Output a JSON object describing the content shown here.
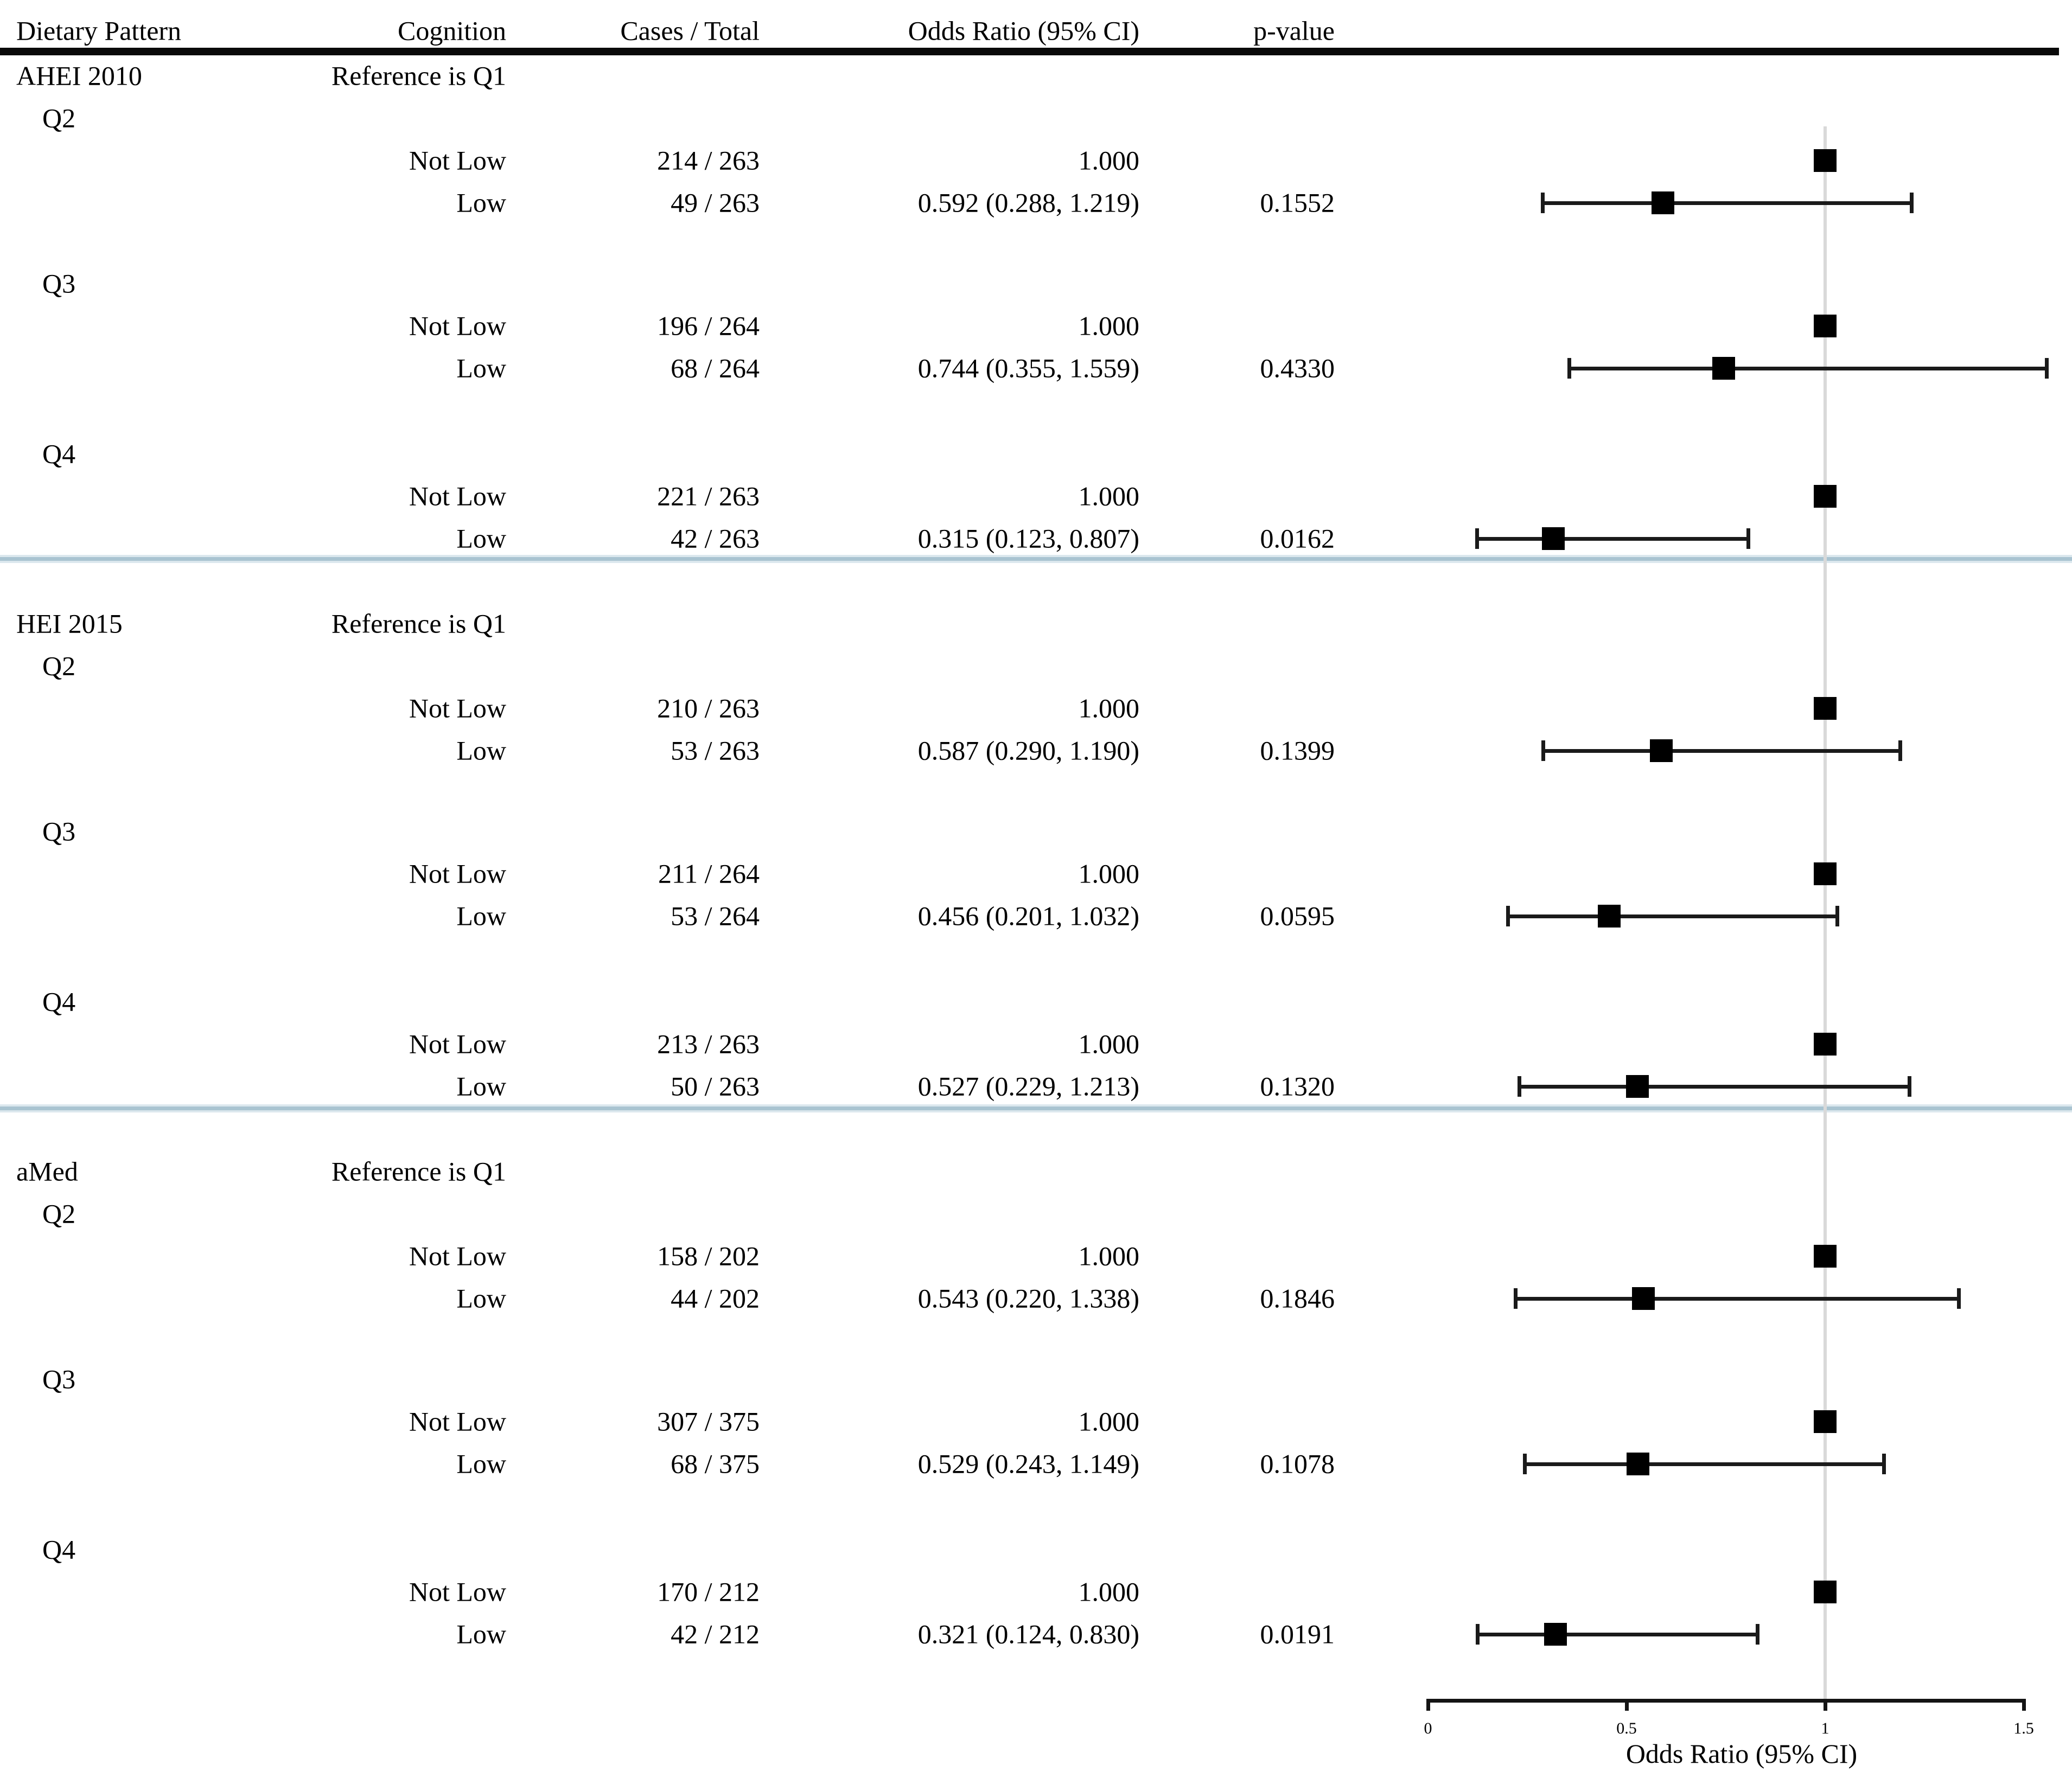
{
  "table": {
    "headers": {
      "dietary_pattern": "Dietary Pattern",
      "cognition": "Cognition",
      "cases_total": "Cases / Total",
      "odds_ratio": "Odds Ratio (95% CI)",
      "p_value": "p-value"
    }
  },
  "chart_data": {
    "type": "forest",
    "axis": {
      "label": "Odds Ratio (95% CI)",
      "ticks": [
        0,
        0.5,
        1,
        1.5
      ],
      "range": [
        0,
        1.5
      ],
      "reference_line": 1
    },
    "colors": {
      "marker": "#000000",
      "divider_blue": "#a9c4d1",
      "reference_line_gray": "#d9d9d9"
    },
    "sections": [
      {
        "pattern": "AHEI 2010",
        "reference_note": "Reference is Q1",
        "quartiles": [
          {
            "label": "Q2",
            "rows": [
              {
                "cognition": "Not Low",
                "cases": "214 / 263",
                "or_text": "1.000",
                "or": 1.0,
                "ci_low": null,
                "ci_high": null,
                "p_value": ""
              },
              {
                "cognition": "Low",
                "cases": "49 / 263",
                "or_text": "0.592 (0.288, 1.219)",
                "or": 0.592,
                "ci_low": 0.288,
                "ci_high": 1.219,
                "p_value": "0.1552"
              }
            ]
          },
          {
            "label": "Q3",
            "rows": [
              {
                "cognition": "Not Low",
                "cases": "196 / 264",
                "or_text": "1.000",
                "or": 1.0,
                "ci_low": null,
                "ci_high": null,
                "p_value": ""
              },
              {
                "cognition": "Low",
                "cases": "68 / 264",
                "or_text": "0.744 (0.355, 1.559)",
                "or": 0.744,
                "ci_low": 0.355,
                "ci_high": 1.559,
                "p_value": "0.4330"
              }
            ]
          },
          {
            "label": "Q4",
            "rows": [
              {
                "cognition": "Not Low",
                "cases": "221 / 263",
                "or_text": "1.000",
                "or": 1.0,
                "ci_low": null,
                "ci_high": null,
                "p_value": ""
              },
              {
                "cognition": "Low",
                "cases": "42 / 263",
                "or_text": "0.315 (0.123, 0.807)",
                "or": 0.315,
                "ci_low": 0.123,
                "ci_high": 0.807,
                "p_value": "0.0162"
              }
            ]
          }
        ]
      },
      {
        "pattern": "HEI 2015",
        "reference_note": "Reference is Q1",
        "quartiles": [
          {
            "label": "Q2",
            "rows": [
              {
                "cognition": "Not Low",
                "cases": "210 / 263",
                "or_text": "1.000",
                "or": 1.0,
                "ci_low": null,
                "ci_high": null,
                "p_value": ""
              },
              {
                "cognition": "Low",
                "cases": "53 / 263",
                "or_text": "0.587 (0.290, 1.190)",
                "or": 0.587,
                "ci_low": 0.29,
                "ci_high": 1.19,
                "p_value": "0.1399"
              }
            ]
          },
          {
            "label": "Q3",
            "rows": [
              {
                "cognition": "Not Low",
                "cases": "211 / 264",
                "or_text": "1.000",
                "or": 1.0,
                "ci_low": null,
                "ci_high": null,
                "p_value": ""
              },
              {
                "cognition": "Low",
                "cases": "53 / 264",
                "or_text": "0.456 (0.201, 1.032)",
                "or": 0.456,
                "ci_low": 0.201,
                "ci_high": 1.032,
                "p_value": "0.0595"
              }
            ]
          },
          {
            "label": "Q4",
            "rows": [
              {
                "cognition": "Not Low",
                "cases": "213 / 263",
                "or_text": "1.000",
                "or": 1.0,
                "ci_low": null,
                "ci_high": null,
                "p_value": ""
              },
              {
                "cognition": "Low",
                "cases": "50 / 263",
                "or_text": "0.527 (0.229, 1.213)",
                "or": 0.527,
                "ci_low": 0.229,
                "ci_high": 1.213,
                "p_value": "0.1320"
              }
            ]
          }
        ]
      },
      {
        "pattern": "aMed",
        "reference_note": "Reference is Q1",
        "quartiles": [
          {
            "label": "Q2",
            "rows": [
              {
                "cognition": "Not Low",
                "cases": "158 / 202",
                "or_text": "1.000",
                "or": 1.0,
                "ci_low": null,
                "ci_high": null,
                "p_value": ""
              },
              {
                "cognition": "Low",
                "cases": "44 / 202",
                "or_text": "0.543 (0.220, 1.338)",
                "or": 0.543,
                "ci_low": 0.22,
                "ci_high": 1.338,
                "p_value": "0.1846"
              }
            ]
          },
          {
            "label": "Q3",
            "rows": [
              {
                "cognition": "Not Low",
                "cases": "307 / 375",
                "or_text": "1.000",
                "or": 1.0,
                "ci_low": null,
                "ci_high": null,
                "p_value": ""
              },
              {
                "cognition": "Low",
                "cases": "68 / 375",
                "or_text": "0.529 (0.243, 1.149)",
                "or": 0.529,
                "ci_low": 0.243,
                "ci_high": 1.149,
                "p_value": "0.1078"
              }
            ]
          },
          {
            "label": "Q4",
            "rows": [
              {
                "cognition": "Not Low",
                "cases": "170 / 212",
                "or_text": "1.000",
                "or": 1.0,
                "ci_low": null,
                "ci_high": null,
                "p_value": ""
              },
              {
                "cognition": "Low",
                "cases": "42 / 212",
                "or_text": "0.321 (0.124, 0.830)",
                "or": 0.321,
                "ci_low": 0.124,
                "ci_high": 0.83,
                "p_value": "0.0191"
              }
            ]
          }
        ]
      }
    ]
  }
}
